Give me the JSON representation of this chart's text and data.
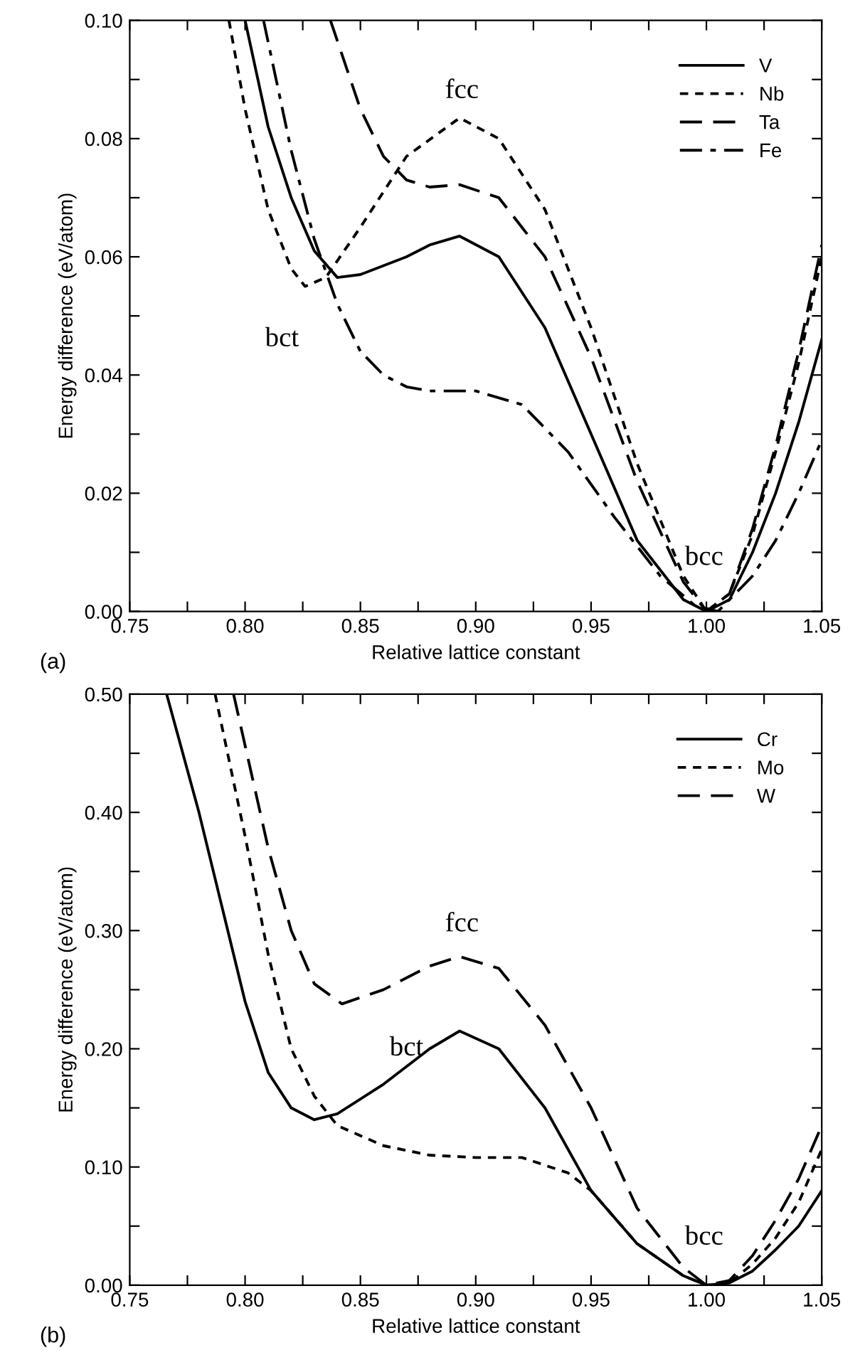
{
  "chart_data": [
    {
      "type": "line",
      "xlabel": "Relative lattice constant",
      "ylabel": "Energy difference (eV/atom)",
      "xlim": [
        0.75,
        1.05
      ],
      "ylim": [
        0.0,
        0.1
      ],
      "xticks": [
        {
          "value": 0.75,
          "label": "0.75"
        },
        {
          "value": 0.775,
          "label": null
        },
        {
          "value": 0.8,
          "label": "0.80"
        },
        {
          "value": 0.825,
          "label": null
        },
        {
          "value": 0.85,
          "label": "0.85"
        },
        {
          "value": 0.875,
          "label": null
        },
        {
          "value": 0.9,
          "label": "0.90"
        },
        {
          "value": 0.925,
          "label": null
        },
        {
          "value": 0.95,
          "label": "0.95"
        },
        {
          "value": 0.975,
          "label": null
        },
        {
          "value": 1.0,
          "label": "1.00"
        },
        {
          "value": 1.025,
          "label": null
        },
        {
          "value": 1.05,
          "label": "1.05"
        }
      ],
      "yticks": [
        {
          "value": 0.0,
          "label": "0.00"
        },
        {
          "value": 0.01,
          "label": null
        },
        {
          "value": 0.02,
          "label": "0.02"
        },
        {
          "value": 0.03,
          "label": null
        },
        {
          "value": 0.04,
          "label": "0.04"
        },
        {
          "value": 0.05,
          "label": null
        },
        {
          "value": 0.06,
          "label": "0.06"
        },
        {
          "value": 0.07,
          "label": null
        },
        {
          "value": 0.08,
          "label": "0.08"
        },
        {
          "value": 0.09,
          "label": null
        },
        {
          "value": 0.1,
          "label": "0.10"
        }
      ],
      "grid": false,
      "legend": "top right",
      "annotations": [
        "fcc",
        "bct",
        "bcc",
        "(a)"
      ],
      "series": [
        {
          "name": "V",
          "color": "#000000",
          "line_style": "solid",
          "x": [
            0.8,
            0.81,
            0.82,
            0.83,
            0.84,
            0.85,
            0.87,
            0.88,
            0.893,
            0.91,
            0.93,
            0.95,
            0.97,
            0.99,
            1.0,
            1.01,
            1.02,
            1.03,
            1.04,
            1.05
          ],
          "values": [
            0.1,
            0.082,
            0.07,
            0.061,
            0.0565,
            0.057,
            0.06,
            0.062,
            0.0635,
            0.06,
            0.048,
            0.03,
            0.012,
            0.002,
            0.0,
            0.002,
            0.01,
            0.02,
            0.032,
            0.046
          ]
        },
        {
          "name": "Nb",
          "color": "#000000",
          "line_style": "dotted",
          "x": [
            0.793,
            0.8,
            0.81,
            0.82,
            0.826,
            0.835,
            0.85,
            0.87,
            0.893,
            0.91,
            0.93,
            0.95,
            0.97,
            0.99,
            1.0,
            1.01,
            1.02,
            1.03,
            1.04,
            1.05
          ],
          "values": [
            0.1,
            0.085,
            0.068,
            0.058,
            0.055,
            0.0565,
            0.065,
            0.077,
            0.0835,
            0.08,
            0.068,
            0.048,
            0.025,
            0.006,
            0.0,
            0.003,
            0.013,
            0.027,
            0.042,
            0.06
          ]
        },
        {
          "name": "Ta",
          "color": "#000000",
          "line_style": "dashed",
          "x": [
            0.837,
            0.85,
            0.86,
            0.87,
            0.88,
            0.893,
            0.91,
            0.93,
            0.95,
            0.97,
            0.99,
            1.0,
            1.01,
            1.02,
            1.03,
            1.04,
            1.05
          ],
          "values": [
            0.1,
            0.085,
            0.077,
            0.073,
            0.0718,
            0.0722,
            0.07,
            0.06,
            0.043,
            0.022,
            0.005,
            0.0,
            0.003,
            0.014,
            0.028,
            0.044,
            0.062
          ]
        },
        {
          "name": "Fe",
          "color": "#000000",
          "line_style": "dashdot",
          "x": [
            0.808,
            0.82,
            0.83,
            0.84,
            0.85,
            0.86,
            0.87,
            0.88,
            0.9,
            0.92,
            0.94,
            0.96,
            0.98,
            0.995,
            1.005,
            1.02,
            1.03,
            1.04,
            1.05
          ],
          "values": [
            0.1,
            0.078,
            0.063,
            0.052,
            0.044,
            0.04,
            0.038,
            0.0373,
            0.0373,
            0.035,
            0.027,
            0.016,
            0.006,
            0.001,
            0.0,
            0.006,
            0.012,
            0.02,
            0.029
          ]
        }
      ]
    },
    {
      "type": "line",
      "xlabel": "Relative lattice constant",
      "ylabel": "Energy difference (eV/atom)",
      "xlim": [
        0.75,
        1.05
      ],
      "ylim": [
        0.0,
        0.5
      ],
      "xticks": [
        {
          "value": 0.75,
          "label": "0.75"
        },
        {
          "value": 0.775,
          "label": null
        },
        {
          "value": 0.8,
          "label": "0.80"
        },
        {
          "value": 0.825,
          "label": null
        },
        {
          "value": 0.85,
          "label": "0.85"
        },
        {
          "value": 0.875,
          "label": null
        },
        {
          "value": 0.9,
          "label": "0.90"
        },
        {
          "value": 0.925,
          "label": null
        },
        {
          "value": 0.95,
          "label": "0.95"
        },
        {
          "value": 0.975,
          "label": null
        },
        {
          "value": 1.0,
          "label": "1.00"
        },
        {
          "value": 1.025,
          "label": null
        },
        {
          "value": 1.05,
          "label": "1.05"
        }
      ],
      "yticks": [
        {
          "value": 0.0,
          "label": "0.00"
        },
        {
          "value": 0.05,
          "label": null
        },
        {
          "value": 0.1,
          "label": "0.10"
        },
        {
          "value": 0.15,
          "label": null
        },
        {
          "value": 0.2,
          "label": "0.20"
        },
        {
          "value": 0.25,
          "label": null
        },
        {
          "value": 0.3,
          "label": "0.30"
        },
        {
          "value": 0.35,
          "label": null
        },
        {
          "value": 0.4,
          "label": "0.40"
        },
        {
          "value": 0.45,
          "label": null
        },
        {
          "value": 0.5,
          "label": "0.50"
        }
      ],
      "grid": false,
      "legend": "top right",
      "annotations": [
        "fcc",
        "bct",
        "bcc",
        "(b)"
      ],
      "series": [
        {
          "name": "Cr",
          "color": "#000000",
          "line_style": "solid",
          "x": [
            0.766,
            0.78,
            0.79,
            0.8,
            0.81,
            0.82,
            0.83,
            0.84,
            0.86,
            0.88,
            0.893,
            0.91,
            0.93,
            0.95,
            0.97,
            0.99,
            1.0,
            1.01,
            1.02,
            1.03,
            1.04,
            1.05
          ],
          "values": [
            0.5,
            0.4,
            0.32,
            0.24,
            0.18,
            0.15,
            0.14,
            0.145,
            0.17,
            0.2,
            0.215,
            0.2,
            0.15,
            0.08,
            0.035,
            0.008,
            0.0,
            0.002,
            0.012,
            0.03,
            0.05,
            0.08
          ]
        },
        {
          "name": "Mo",
          "color": "#000000",
          "line_style": "dotted",
          "x": [
            0.787,
            0.8,
            0.81,
            0.82,
            0.83,
            0.84,
            0.86,
            0.88,
            0.9,
            0.92,
            0.94,
            0.95,
            0.97,
            0.99,
            1.0,
            1.01,
            1.02,
            1.03,
            1.04,
            1.05
          ],
          "values": [
            0.5,
            0.38,
            0.28,
            0.2,
            0.16,
            0.135,
            0.118,
            0.11,
            0.108,
            0.108,
            0.095,
            0.08,
            0.035,
            0.008,
            0.0,
            0.002,
            0.018,
            0.04,
            0.07,
            0.115
          ]
        },
        {
          "name": "W",
          "color": "#000000",
          "line_style": "dashed",
          "x": [
            0.795,
            0.81,
            0.82,
            0.83,
            0.842,
            0.86,
            0.88,
            0.893,
            0.91,
            0.93,
            0.95,
            0.97,
            0.99,
            1.0,
            1.01,
            1.02,
            1.03,
            1.04,
            1.05
          ],
          "values": [
            0.5,
            0.37,
            0.3,
            0.255,
            0.238,
            0.25,
            0.27,
            0.278,
            0.268,
            0.22,
            0.15,
            0.065,
            0.015,
            0.0,
            0.004,
            0.025,
            0.055,
            0.09,
            0.135
          ]
        }
      ]
    }
  ]
}
